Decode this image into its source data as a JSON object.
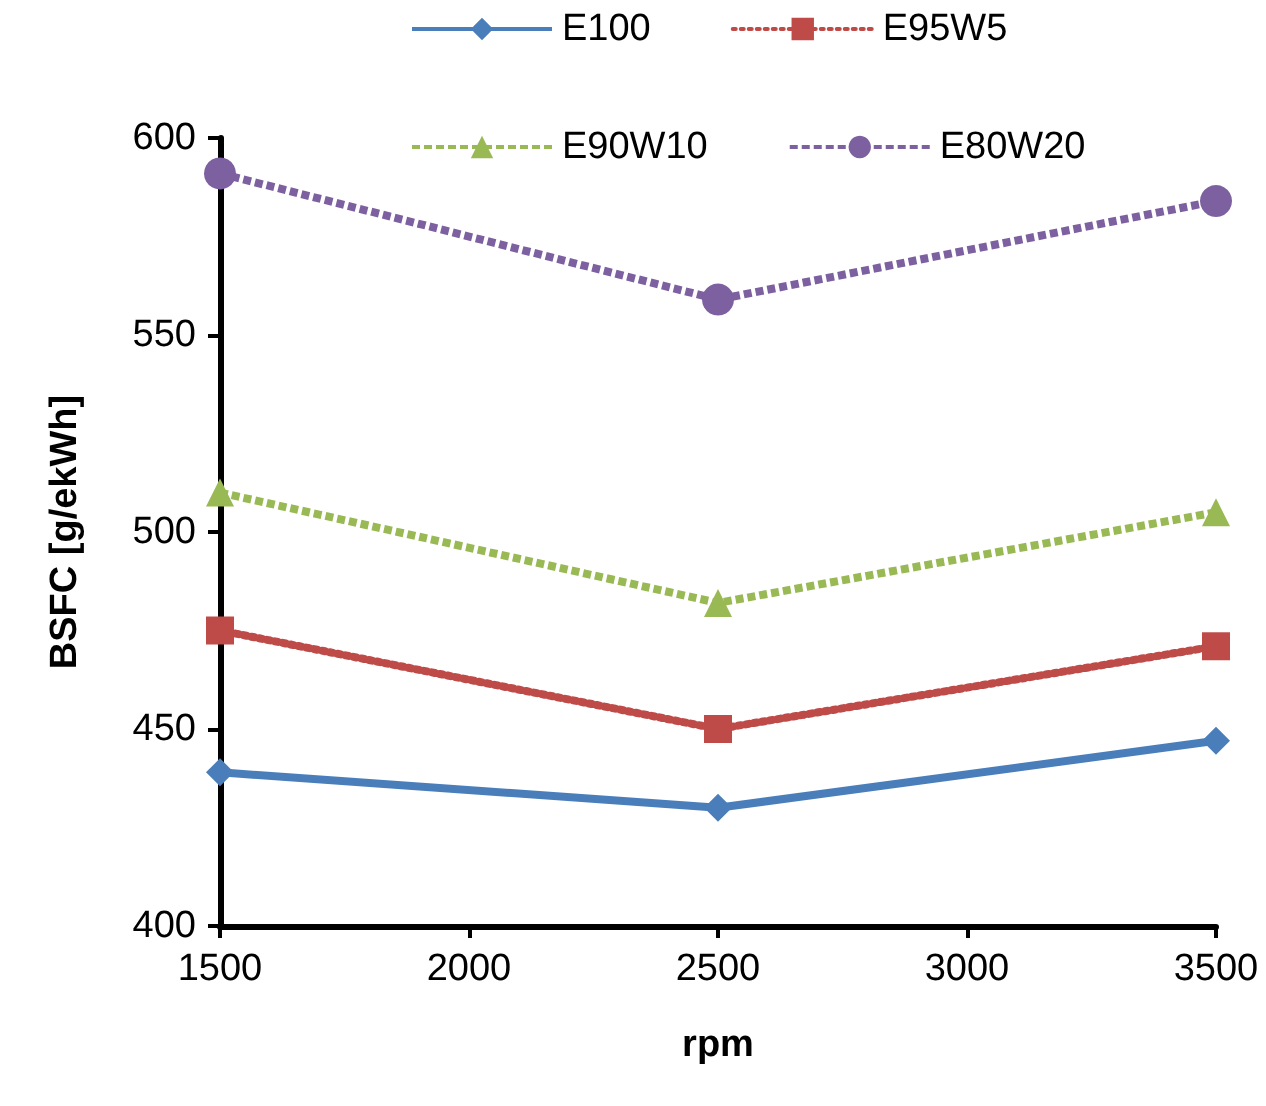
{
  "chart_data": {
    "type": "line",
    "xlabel": "rpm",
    "ylabel": "BSFC [g/ekWh]",
    "x": [
      1500,
      2500,
      3500
    ],
    "xlim": [
      1500,
      3500
    ],
    "xticks": [
      1500,
      2000,
      2500,
      3000,
      3500
    ],
    "ylim": [
      400,
      600
    ],
    "yticks": [
      400,
      450,
      500,
      550,
      600
    ],
    "grid": false,
    "legend": "top",
    "series": [
      {
        "name": "E100",
        "color": "#4a7ebb",
        "marker": "diamond",
        "line_style": "solid",
        "values": [
          439,
          430,
          447
        ]
      },
      {
        "name": "E95W5",
        "color": "#be4b48",
        "marker": "square",
        "line_style": "dotted",
        "values": [
          475,
          450,
          471
        ]
      },
      {
        "name": "E90W10",
        "color": "#98b954",
        "marker": "triangle",
        "line_style": "dashed",
        "values": [
          510,
          482,
          505
        ]
      },
      {
        "name": "E80W20",
        "color": "#7d60a0",
        "marker": "circle",
        "line_style": "dashed",
        "values": [
          591,
          559,
          584
        ]
      }
    ]
  }
}
